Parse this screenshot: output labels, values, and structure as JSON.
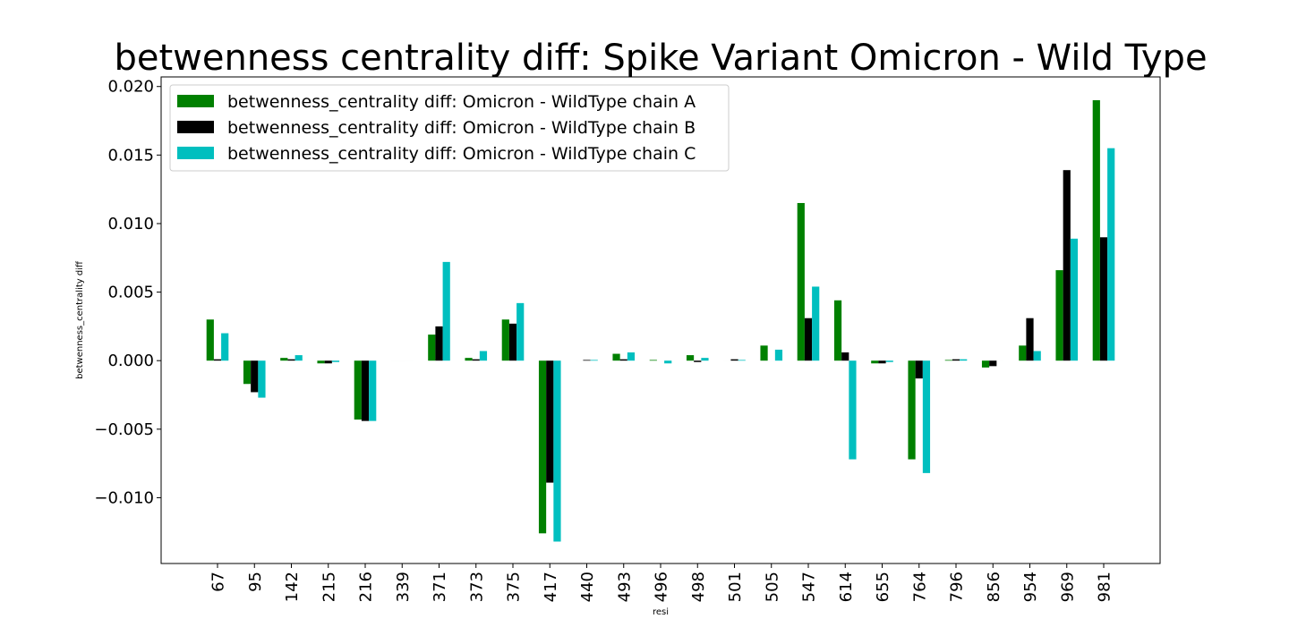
{
  "chart_data": {
    "type": "bar",
    "title": "betwenness centrality diff: Spike Variant Omicron - Wild Type",
    "xlabel": "resi",
    "ylabel": "betwenness_centrality diff",
    "categories": [
      "67",
      "95",
      "142",
      "215",
      "216",
      "339",
      "371",
      "373",
      "375",
      "417",
      "440",
      "493",
      "496",
      "498",
      "501",
      "505",
      "547",
      "614",
      "655",
      "764",
      "796",
      "856",
      "954",
      "969",
      "981"
    ],
    "series": [
      {
        "name": "betwenness_centrality diff: Omicron - WildType chain A",
        "color": "#008000",
        "values": [
          0.003,
          -0.0017,
          0.0002,
          -0.0002,
          -0.0043,
          0.0,
          0.0019,
          0.0002,
          0.003,
          -0.0126,
          0.0,
          0.0005,
          5e-05,
          0.0004,
          0.0,
          0.0011,
          0.0115,
          0.0044,
          -0.0002,
          -0.0072,
          5e-05,
          -0.0005,
          0.0011,
          0.0066,
          0.019
        ]
      },
      {
        "name": "betwenness_centrality diff: Omicron - WildType chain B",
        "color": "#000000",
        "values": [
          0.0001,
          -0.0023,
          0.0001,
          -0.0002,
          -0.0044,
          0.0,
          0.0025,
          0.0001,
          0.0027,
          -0.0089,
          5e-05,
          0.0001,
          0.0,
          -0.0001,
          0.0001,
          0.0,
          0.0031,
          0.0006,
          -0.0002,
          -0.0013,
          0.0001,
          -0.0004,
          0.0031,
          0.0139,
          0.009
        ]
      },
      {
        "name": "betwenness_centrality diff: Omicron - WildType chain C",
        "color": "#00bfbf",
        "values": [
          0.002,
          -0.0027,
          0.0004,
          -0.0001,
          -0.0044,
          0.0,
          0.0072,
          0.0007,
          0.0042,
          -0.0132,
          5e-05,
          0.0006,
          -0.0002,
          0.0002,
          5e-05,
          0.0008,
          0.0054,
          -0.0072,
          -0.0001,
          -0.0082,
          0.0001,
          0.0,
          0.0007,
          0.0089,
          0.0155
        ]
      }
    ],
    "ylim": [
      -0.0148,
      0.0207
    ],
    "yticks": [
      -0.01,
      -0.005,
      0.0,
      0.005,
      0.01,
      0.015,
      0.02
    ],
    "ytick_labels": [
      "−0.010",
      "−0.005",
      "0.000",
      "0.005",
      "0.010",
      "0.015",
      "0.020"
    ],
    "grid": false,
    "legend_position": "top-left"
  }
}
